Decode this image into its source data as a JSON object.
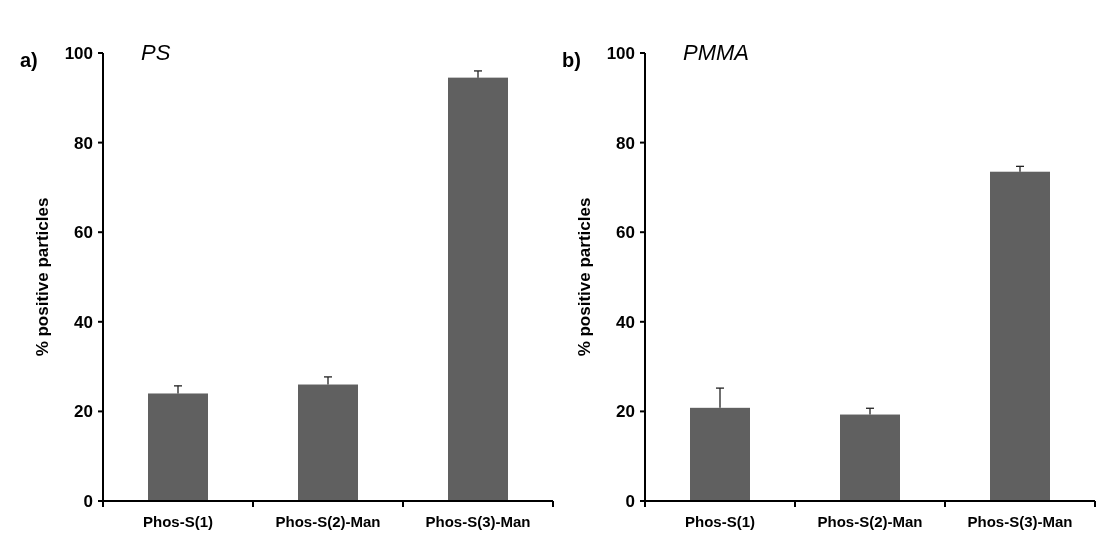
{
  "chart_data": [
    {
      "type": "bar",
      "title": "PS",
      "annotations": [
        "a)"
      ],
      "ylabel": "% positive particles",
      "categories": [
        "Phos-S(1)",
        "Phos-S(2)-Man",
        "Phos-S(3)-Man"
      ],
      "series": [
        {
          "color": "#606060",
          "values": [
            24,
            26,
            94.5
          ],
          "errors": [
            [
              24,
              25.7
            ],
            [
              26,
              27.7
            ],
            [
              94.5,
              96
            ]
          ]
        }
      ],
      "ylim": [
        0,
        100
      ],
      "yticks": [
        0,
        20,
        40,
        60,
        80,
        100
      ]
    },
    {
      "type": "bar",
      "title": "PMMA",
      "annotations": [
        "b)"
      ],
      "ylabel": "% positive particles",
      "categories": [
        "Phos-S(1)",
        "Phos-S(2)-Man",
        "Phos-S(3)-Man"
      ],
      "series": [
        {
          "color": "#606060",
          "values": [
            20.8,
            19.3,
            73.5
          ],
          "errors": [
            [
              20.8,
              25.2
            ],
            [
              19.3,
              20.7
            ],
            [
              73.5,
              74.7
            ]
          ]
        }
      ],
      "ylim": [
        0,
        100
      ],
      "yticks": [
        0,
        20,
        40,
        60,
        80,
        100
      ]
    }
  ]
}
